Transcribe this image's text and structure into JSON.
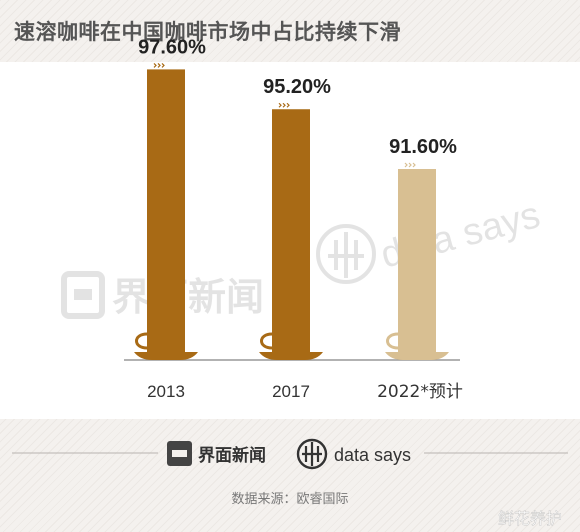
{
  "title": "速溶咖啡在中国咖啡市场中占比持续下滑",
  "watermark": {
    "brand_cn": "界面新闻",
    "brand_en": "data says"
  },
  "footer": {
    "brand_cn": "界面新闻",
    "brand_en": "data says",
    "source": "数据来源：欧睿国际",
    "corner_mark": "鲜花养护"
  },
  "colors": {
    "bar_actual": "#a86a15",
    "bar_forecast": "#d8bf92",
    "label": "#222222",
    "axis": "#999999"
  },
  "chart_data": {
    "type": "bar",
    "title": "速溶咖啡在中国咖啡市场中占比持续下滑",
    "categories": [
      "2013",
      "2017",
      "2022*预计"
    ],
    "values": [
      97.6,
      95.2,
      91.6
    ],
    "value_labels": [
      "97.60%",
      "95.20%",
      "91.60%"
    ],
    "forecast": [
      false,
      false,
      true
    ],
    "unit": "%",
    "ylim": [
      90,
      98
    ],
    "grid": false,
    "legend": "none"
  }
}
